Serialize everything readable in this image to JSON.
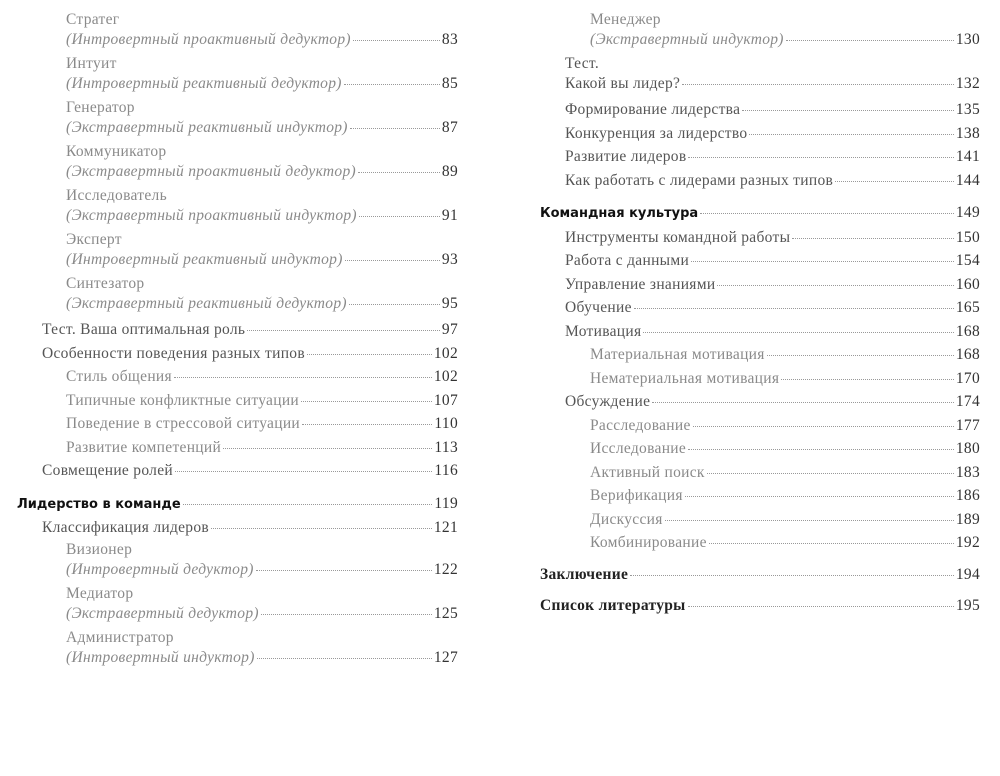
{
  "left": {
    "entries": [
      {
        "level": 2,
        "title": "Стратег",
        "subtitle": "(Интровертный проактивный дедуктор)",
        "page": "83"
      },
      {
        "level": 2,
        "title": "Интуит",
        "subtitle": "(Интровертный реактивный дедуктор)",
        "page": "85"
      },
      {
        "level": 2,
        "title": "Генератор",
        "subtitle": "(Экстравертный реактивный индуктор)",
        "page": "87"
      },
      {
        "level": 2,
        "title": "Коммуникатор",
        "subtitle": "(Экстравертный проактивный дедуктор)",
        "page": "89"
      },
      {
        "level": 2,
        "title": "Исследователь",
        "subtitle": "(Экстравертный проактивный индуктор)",
        "page": "91"
      },
      {
        "level": 2,
        "title": "Эксперт",
        "subtitle": "(Интровертный реактивный индуктор)",
        "page": "93"
      },
      {
        "level": 2,
        "title": "Синтезатор",
        "subtitle": "(Экстравертный реактивный дедуктор)",
        "page": "95"
      },
      {
        "level": 1,
        "title": "Тест. Ваша оптимальная роль",
        "page": "97"
      },
      {
        "level": 1,
        "title": "Особенности поведения разных типов",
        "page": "102"
      },
      {
        "level": 2,
        "title": "Стиль общения",
        "page": "102"
      },
      {
        "level": 2,
        "title": "Типичные конфликтные ситуации",
        "page": "107"
      },
      {
        "level": 2,
        "title": "Поведение в стрессовой ситуации",
        "page": "110"
      },
      {
        "level": 2,
        "title": "Развитие компетенций",
        "page": "113"
      },
      {
        "level": 1,
        "title": "Совмещение ролей",
        "page": "116"
      },
      {
        "level": 0,
        "title": "Лидерство в команде",
        "page": "119"
      },
      {
        "level": 1,
        "title": "Классификация лидеров",
        "page": "121"
      },
      {
        "level": 2,
        "title": "Визионер",
        "subtitle": "(Интровертный дедуктор)",
        "page": "122"
      },
      {
        "level": 2,
        "title": "Медиатор",
        "subtitle": "(Экстравертный дедуктор)",
        "page": "125"
      },
      {
        "level": 2,
        "title": "Администратор",
        "subtitle": "(Интровертный индуктор)",
        "page": "127"
      }
    ]
  },
  "right": {
    "entries": [
      {
        "level": 2,
        "title": "Менеджер",
        "subtitle": "(Экстравертный индуктор)",
        "page": "130"
      },
      {
        "level": 1,
        "title": "Тест.",
        "subtitle_plain": "Какой вы лидер?",
        "page": "132"
      },
      {
        "level": 1,
        "title": "Формирование лидерства",
        "page": "135"
      },
      {
        "level": 1,
        "title": "Конкуренция за лидерство",
        "page": "138"
      },
      {
        "level": 1,
        "title": "Развитие лидеров",
        "page": "141"
      },
      {
        "level": 1,
        "title": "Как работать с лидерами разных типов",
        "page": "144"
      },
      {
        "level": 0,
        "title": "Командная культура",
        "page": "149"
      },
      {
        "level": 1,
        "title": "Инструменты командной работы",
        "page": "150"
      },
      {
        "level": 1,
        "title": "Работа с данными",
        "page": "154"
      },
      {
        "level": 1,
        "title": "Управление знаниями",
        "page": "160"
      },
      {
        "level": 1,
        "title": "Обучение",
        "page": "165"
      },
      {
        "level": 1,
        "title": "Мотивация",
        "page": "168"
      },
      {
        "level": 2,
        "title": "Материальная мотивация",
        "page": "168"
      },
      {
        "level": 2,
        "title": "Нематериальная мотивация",
        "page": "170"
      },
      {
        "level": 1,
        "title": "Обсуждение",
        "page": "174"
      },
      {
        "level": 2,
        "title": "Расследование",
        "page": "177"
      },
      {
        "level": 2,
        "title": "Исследование",
        "page": "180"
      },
      {
        "level": 2,
        "title": "Активный поиск",
        "page": "183"
      },
      {
        "level": 2,
        "title": "Верификация",
        "page": "186"
      },
      {
        "level": 2,
        "title": "Дискуссия",
        "page": "189"
      },
      {
        "level": 2,
        "title": "Комбинирование",
        "page": "192"
      },
      {
        "level": "0s",
        "title": "Заключение",
        "page": "194"
      },
      {
        "level": "0s",
        "title": "Список литературы",
        "page": "195"
      }
    ]
  }
}
